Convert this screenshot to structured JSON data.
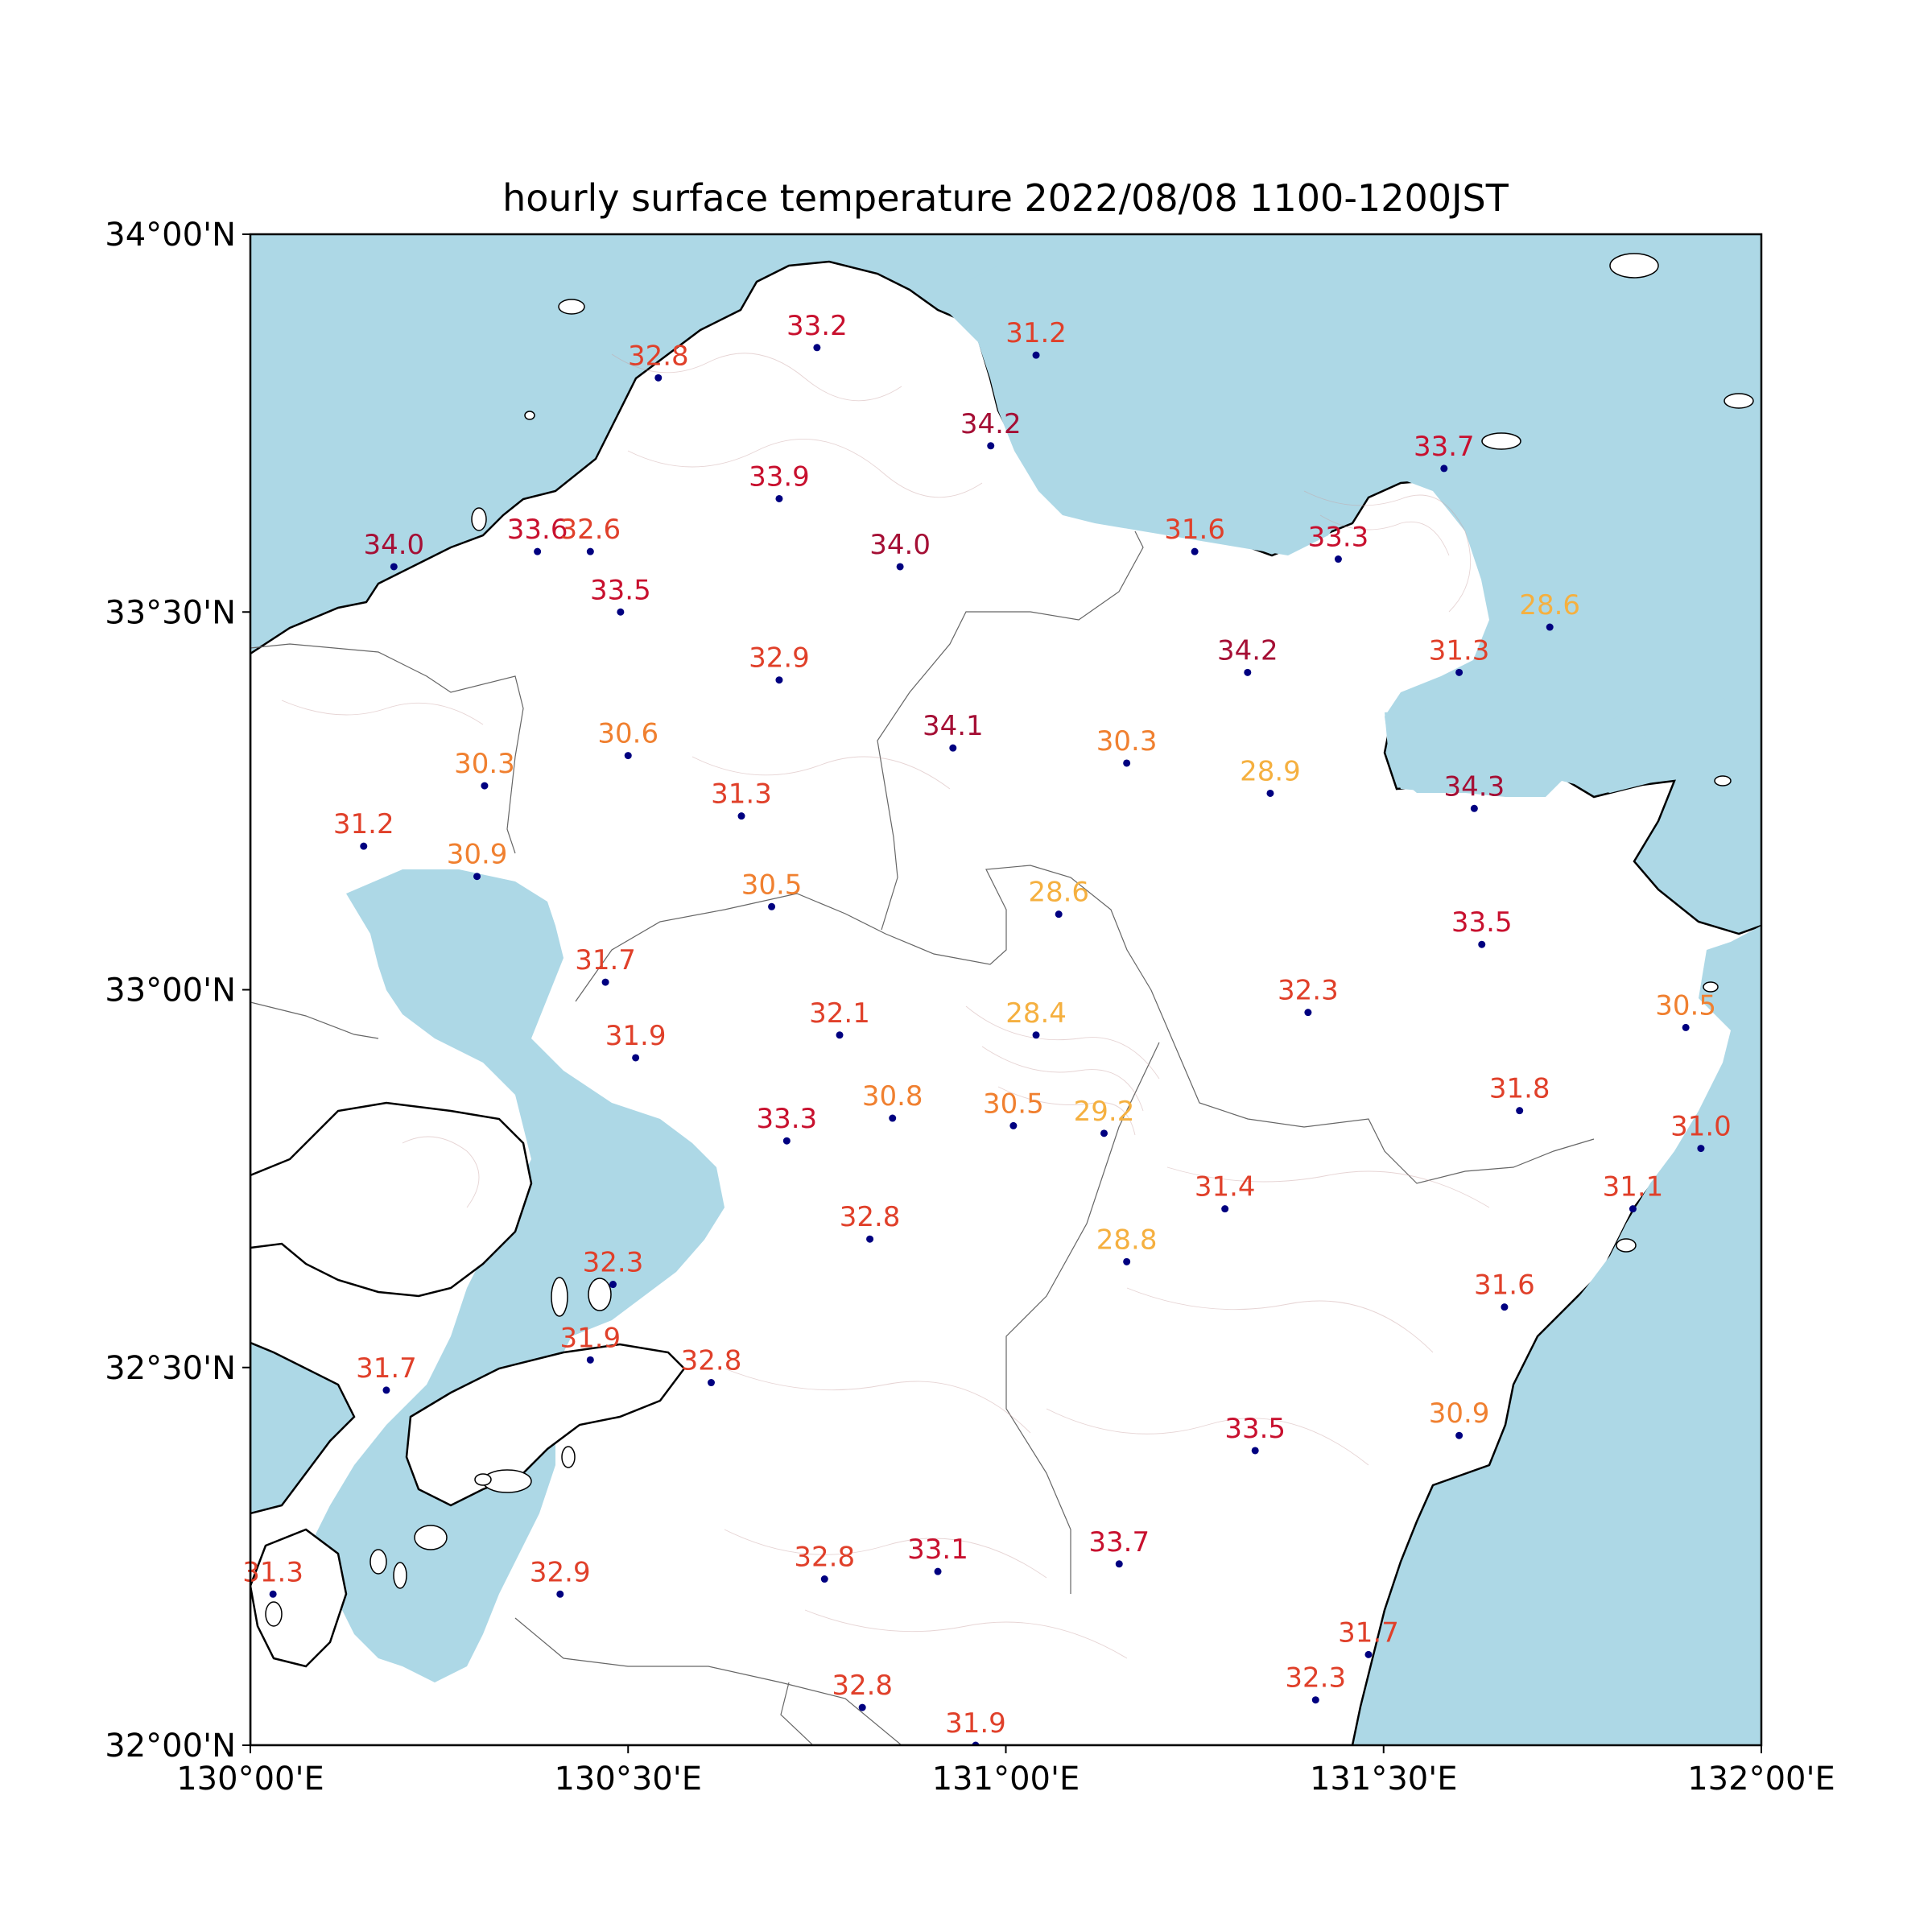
{
  "title": "hourly surface temperature 2022/08/08 1100-1200JST",
  "extent": {
    "lon_min": 130.0,
    "lon_max": 132.0,
    "lat_min": 32.0,
    "lat_max": 34.0
  },
  "x_ticks": [
    {
      "value": 130.0,
      "label": "130°00'E"
    },
    {
      "value": 130.5,
      "label": "130°30'E"
    },
    {
      "value": 131.0,
      "label": "131°00'E"
    },
    {
      "value": 131.5,
      "label": "131°30'E"
    },
    {
      "value": 132.0,
      "label": "132°00'E"
    }
  ],
  "y_ticks": [
    {
      "value": 34.0,
      "label": "34°00'N"
    },
    {
      "value": 33.5,
      "label": "33°30'N"
    },
    {
      "value": 33.0,
      "label": "33°00'N"
    },
    {
      "value": 32.5,
      "label": "32°30'N"
    },
    {
      "value": 32.0,
      "label": "32°00'N"
    }
  ],
  "colors": {
    "sea": "#add8e6",
    "station_dot": "#000080",
    "scale": [
      {
        "min": 34.0,
        "color": "#a50f35"
      },
      {
        "min": 33.0,
        "color": "#c8102e"
      },
      {
        "min": 31.0,
        "color": "#e0402a"
      },
      {
        "min": 30.0,
        "color": "#f08030"
      },
      {
        "min": 0,
        "color": "#f5b040"
      }
    ]
  },
  "stations": [
    {
      "lon": 130.54,
      "lat": 33.81,
      "value": "32.8"
    },
    {
      "lon": 130.75,
      "lat": 33.85,
      "value": "33.2"
    },
    {
      "lon": 131.04,
      "lat": 33.84,
      "value": "31.2"
    },
    {
      "lon": 130.98,
      "lat": 33.72,
      "value": "34.2"
    },
    {
      "lon": 130.7,
      "lat": 33.65,
      "value": "33.9"
    },
    {
      "lon": 131.58,
      "lat": 33.69,
      "value": "33.7"
    },
    {
      "lon": 130.19,
      "lat": 33.56,
      "value": "34.0"
    },
    {
      "lon": 130.38,
      "lat": 33.58,
      "value": "33.6"
    },
    {
      "lon": 130.45,
      "lat": 33.58,
      "value": "32.6"
    },
    {
      "lon": 130.86,
      "lat": 33.56,
      "value": "34.0"
    },
    {
      "lon": 131.25,
      "lat": 33.58,
      "value": "31.6"
    },
    {
      "lon": 131.44,
      "lat": 33.57,
      "value": "33.3"
    },
    {
      "lon": 130.49,
      "lat": 33.5,
      "value": "33.5"
    },
    {
      "lon": 131.72,
      "lat": 33.48,
      "value": "28.6"
    },
    {
      "lon": 130.7,
      "lat": 33.41,
      "value": "32.9"
    },
    {
      "lon": 131.32,
      "lat": 33.42,
      "value": "34.2"
    },
    {
      "lon": 131.6,
      "lat": 33.42,
      "value": "31.3"
    },
    {
      "lon": 130.93,
      "lat": 33.32,
      "value": "34.1"
    },
    {
      "lon": 130.5,
      "lat": 33.31,
      "value": "30.6"
    },
    {
      "lon": 131.16,
      "lat": 33.3,
      "value": "30.3"
    },
    {
      "lon": 130.31,
      "lat": 33.27,
      "value": "30.3"
    },
    {
      "lon": 131.35,
      "lat": 33.26,
      "value": "28.9"
    },
    {
      "lon": 131.62,
      "lat": 33.24,
      "value": "34.3"
    },
    {
      "lon": 130.65,
      "lat": 33.23,
      "value": "31.3"
    },
    {
      "lon": 130.15,
      "lat": 33.19,
      "value": "31.2"
    },
    {
      "lon": 130.3,
      "lat": 33.15,
      "value": "30.9"
    },
    {
      "lon": 130.69,
      "lat": 33.11,
      "value": "30.5"
    },
    {
      "lon": 131.07,
      "lat": 33.1,
      "value": "28.6"
    },
    {
      "lon": 131.63,
      "lat": 33.06,
      "value": "33.5"
    },
    {
      "lon": 130.47,
      "lat": 33.01,
      "value": "31.7"
    },
    {
      "lon": 131.4,
      "lat": 32.97,
      "value": "32.3"
    },
    {
      "lon": 130.78,
      "lat": 32.94,
      "value": "32.1"
    },
    {
      "lon": 131.04,
      "lat": 32.94,
      "value": "28.4"
    },
    {
      "lon": 131.9,
      "lat": 32.95,
      "value": "30.5"
    },
    {
      "lon": 130.51,
      "lat": 32.91,
      "value": "31.9"
    },
    {
      "lon": 130.85,
      "lat": 32.83,
      "value": "30.8"
    },
    {
      "lon": 131.01,
      "lat": 32.82,
      "value": "30.5"
    },
    {
      "lon": 131.13,
      "lat": 32.81,
      "value": "29.2"
    },
    {
      "lon": 131.68,
      "lat": 32.84,
      "value": "31.8"
    },
    {
      "lon": 130.71,
      "lat": 32.8,
      "value": "33.3"
    },
    {
      "lon": 131.92,
      "lat": 32.79,
      "value": "31.0"
    },
    {
      "lon": 131.29,
      "lat": 32.71,
      "value": "31.4"
    },
    {
      "lon": 131.83,
      "lat": 32.71,
      "value": "31.1"
    },
    {
      "lon": 130.82,
      "lat": 32.67,
      "value": "32.8"
    },
    {
      "lon": 131.16,
      "lat": 32.64,
      "value": "28.8"
    },
    {
      "lon": 130.48,
      "lat": 32.61,
      "value": "32.3"
    },
    {
      "lon": 131.66,
      "lat": 32.58,
      "value": "31.6"
    },
    {
      "lon": 130.45,
      "lat": 32.51,
      "value": "31.9"
    },
    {
      "lon": 130.18,
      "lat": 32.47,
      "value": "31.7"
    },
    {
      "lon": 130.61,
      "lat": 32.48,
      "value": "32.8"
    },
    {
      "lon": 131.6,
      "lat": 32.41,
      "value": "30.9"
    },
    {
      "lon": 131.33,
      "lat": 32.39,
      "value": "33.5"
    },
    {
      "lon": 131.15,
      "lat": 32.24,
      "value": "33.7"
    },
    {
      "lon": 130.76,
      "lat": 32.22,
      "value": "32.8"
    },
    {
      "lon": 130.91,
      "lat": 32.23,
      "value": "33.1"
    },
    {
      "lon": 130.41,
      "lat": 32.2,
      "value": "32.9"
    },
    {
      "lon": 130.03,
      "lat": 32.2,
      "value": "31.3"
    },
    {
      "lon": 131.48,
      "lat": 32.12,
      "value": "31.7"
    },
    {
      "lon": 131.41,
      "lat": 32.06,
      "value": "32.3"
    },
    {
      "lon": 130.81,
      "lat": 32.05,
      "value": "32.8"
    },
    {
      "lon": 130.96,
      "lat": 32.0,
      "value": "31.9"
    }
  ]
}
